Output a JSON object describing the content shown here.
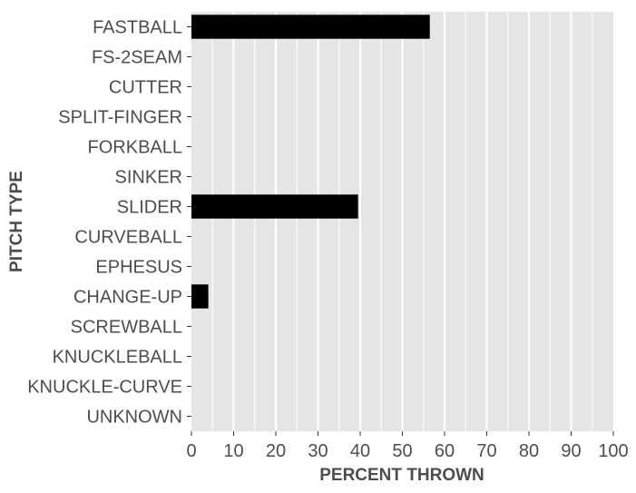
{
  "chart_data": {
    "type": "bar",
    "orientation": "horizontal",
    "xlabel": "PERCENT THROWN",
    "ylabel": "PITCH TYPE",
    "xlim": [
      0,
      100
    ],
    "xticks": [
      0,
      10,
      20,
      30,
      40,
      50,
      60,
      70,
      80,
      90,
      100
    ],
    "categories": [
      "FASTBALL",
      "FS-2SEAM",
      "CUTTER",
      "SPLIT-FINGER",
      "FORKBALL",
      "SINKER",
      "SLIDER",
      "CURVEBALL",
      "EPHESUS",
      "CHANGE-UP",
      "SCREWBALL",
      "KNUCKLEBALL",
      "KNUCKLE-CURVE",
      "UNKNOWN"
    ],
    "values": [
      56.5,
      0,
      0,
      0,
      0,
      0,
      39.5,
      0,
      0,
      4,
      0,
      0,
      0,
      0
    ],
    "grid": true,
    "colors": {
      "bar": "#000000",
      "panel": "#e5e5e5",
      "grid": "#ffffff",
      "text": "#4d4d4d"
    }
  }
}
